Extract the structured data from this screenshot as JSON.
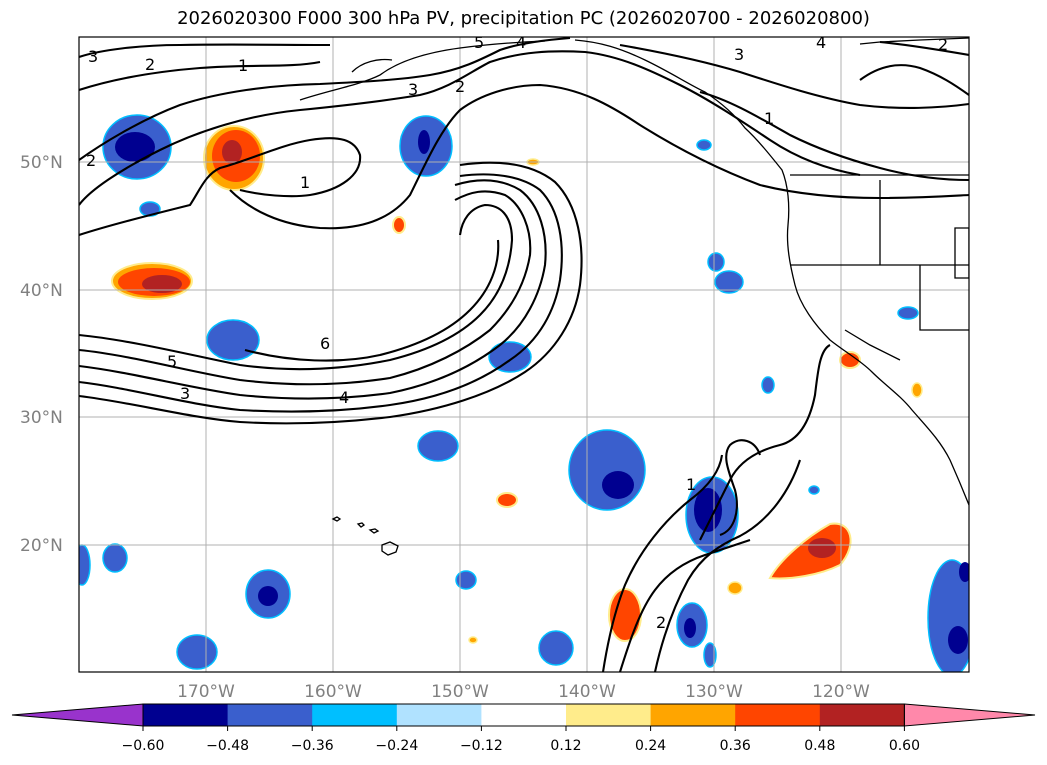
{
  "title": "2026020300 F000 300 hPa PV, precipitation PC (2026020700 - 2026020800)",
  "lat_labels": [
    "50°N",
    "40°N",
    "30°N",
    "20°N"
  ],
  "lon_labels": [
    "170°W",
    "160°W",
    "150°W",
    "140°W",
    "130°W",
    "120°W"
  ],
  "contour_labels": [
    "3",
    "2",
    "1",
    "5",
    "4",
    "3",
    "2",
    "3",
    "4",
    "1",
    "2",
    "1",
    "6",
    "5",
    "3",
    "4",
    "1",
    "2",
    "2"
  ],
  "colorbar": {
    "tick_labels": [
      "−0.60",
      "−0.48",
      "−0.36",
      "−0.24",
      "−0.12",
      "0.12",
      "0.24",
      "0.36",
      "0.48",
      "0.60"
    ],
    "colors": [
      "#9933cc",
      "#000090",
      "#3a5fcd",
      "#00bfff",
      "#b0e2ff",
      "#ffffff",
      "#ffec8b",
      "#ffa500",
      "#ff4500",
      "#b22222",
      "#ff88aa"
    ]
  },
  "colors": {
    "contour": "#000000",
    "grid": "#b0b0b0",
    "coast": "#000000"
  }
}
